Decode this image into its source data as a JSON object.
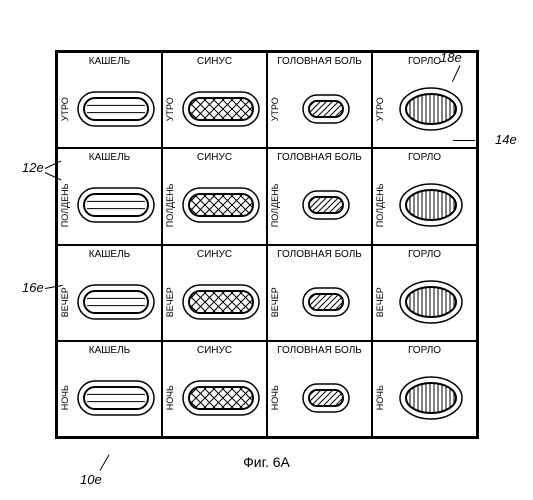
{
  "caption": "Фиг. 6А",
  "callouts": {
    "c18e": "18e",
    "c14e": "14e",
    "c12e": "12e",
    "c16e": "16e",
    "c10e": "10e"
  },
  "columns": [
    {
      "header": "КАШЕЛЬ",
      "pill": "wide-lines"
    },
    {
      "header": "СИНУС",
      "pill": "wide-cross"
    },
    {
      "header": "ГОЛОВНАЯ БОЛЬ",
      "pill": "small-diag"
    },
    {
      "header": "ГОРЛО",
      "pill": "ellipse-vlines"
    }
  ],
  "rows": [
    {
      "label": "УТРО"
    },
    {
      "label": "ПОЛДЕНЬ"
    },
    {
      "label": "ВЕЧЕР"
    },
    {
      "label": "НОЧЬ"
    }
  ],
  "layout": {
    "pillWideW": 70,
    "pillWideH": 28,
    "pillWideR": 14,
    "pillSmallW": 40,
    "pillSmallH": 22,
    "pillSmallR": 11,
    "ellipseRx": 28,
    "ellipseRy": 18
  },
  "colors": {
    "stroke": "#000000",
    "bg": "#ffffff"
  }
}
